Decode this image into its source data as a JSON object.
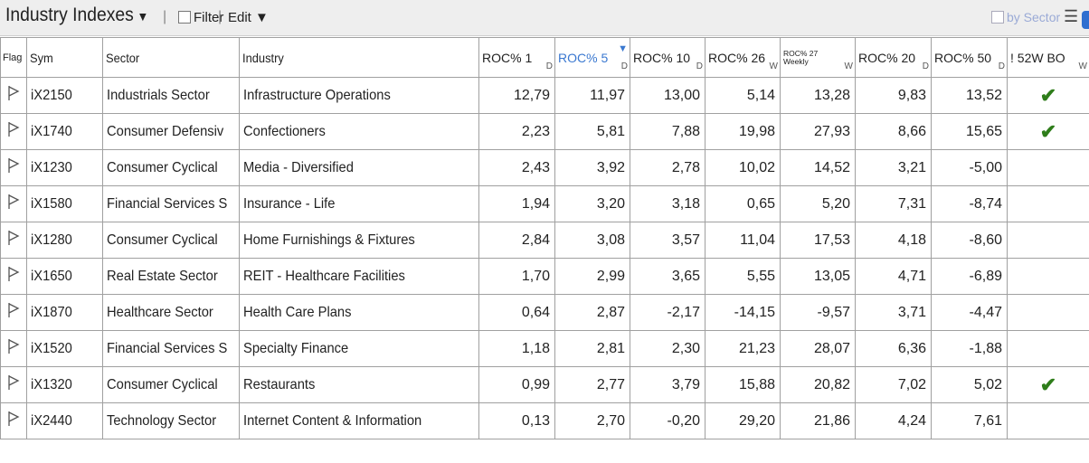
{
  "toolbar": {
    "title": "Industry Indexes",
    "title_caret": "▼",
    "sep": "|",
    "filter_label": "Filter",
    "edit_label": "Edit ▼",
    "by_sector_label": "by Sector",
    "menu_icon": "☰"
  },
  "columns": {
    "flag": "Flag",
    "sym": "Sym",
    "sector": "Sector",
    "industry": "Industry",
    "roc1": "ROC% 1",
    "roc1_sub": "D",
    "roc5": "ROC% 5",
    "roc5_sub": "D",
    "roc10": "ROC% 10",
    "roc10_sub": "D",
    "roc26": "ROC% 26",
    "roc26_sub": "W",
    "roc27_line1": "ROC% 27",
    "roc27_line2": "Weekly",
    "roc27_sub": "W",
    "roc20": "ROC% 20",
    "roc20_sub": "D",
    "roc50": "ROC% 50",
    "roc50_sub": "D",
    "bo": "! 52W BO",
    "bo_sub": "W"
  },
  "colors": {
    "check": "#2e7d1a",
    "sorted_header": "#3a78d0"
  },
  "rows": [
    {
      "sym": "iX2150",
      "sector": "Industrials Sector",
      "industry": "Infrastructure Operations",
      "roc1": "12,79",
      "roc5": "11,97",
      "roc10": "13,00",
      "roc26": "5,14",
      "roc27": "13,28",
      "roc20": "9,83",
      "roc50": "13,52",
      "bo": "✔"
    },
    {
      "sym": "iX1740",
      "sector": "Consumer Defensiv",
      "industry": "Confectioners",
      "roc1": "2,23",
      "roc5": "5,81",
      "roc10": "7,88",
      "roc26": "19,98",
      "roc27": "27,93",
      "roc20": "8,66",
      "roc50": "15,65",
      "bo": "✔"
    },
    {
      "sym": "iX1230",
      "sector": "Consumer Cyclical",
      "industry": "Media - Diversified",
      "roc1": "2,43",
      "roc5": "3,92",
      "roc10": "2,78",
      "roc26": "10,02",
      "roc27": "14,52",
      "roc20": "3,21",
      "roc50": "-5,00",
      "bo": ""
    },
    {
      "sym": "iX1580",
      "sector": "Financial Services S",
      "industry": "Insurance - Life",
      "roc1": "1,94",
      "roc5": "3,20",
      "roc10": "3,18",
      "roc26": "0,65",
      "roc27": "5,20",
      "roc20": "7,31",
      "roc50": "-8,74",
      "bo": ""
    },
    {
      "sym": "iX1280",
      "sector": "Consumer Cyclical",
      "industry": "Home Furnishings & Fixtures",
      "roc1": "2,84",
      "roc5": "3,08",
      "roc10": "3,57",
      "roc26": "11,04",
      "roc27": "17,53",
      "roc20": "4,18",
      "roc50": "-8,60",
      "bo": ""
    },
    {
      "sym": "iX1650",
      "sector": "Real Estate Sector",
      "industry": "REIT - Healthcare Facilities",
      "roc1": "1,70",
      "roc5": "2,99",
      "roc10": "3,65",
      "roc26": "5,55",
      "roc27": "13,05",
      "roc20": "4,71",
      "roc50": "-6,89",
      "bo": ""
    },
    {
      "sym": "iX1870",
      "sector": "Healthcare Sector",
      "industry": "Health Care Plans",
      "roc1": "0,64",
      "roc5": "2,87",
      "roc10": "-2,17",
      "roc26": "-14,15",
      "roc27": "-9,57",
      "roc20": "3,71",
      "roc50": "-4,47",
      "bo": ""
    },
    {
      "sym": "iX1520",
      "sector": "Financial Services S",
      "industry": "Specialty Finance",
      "roc1": "1,18",
      "roc5": "2,81",
      "roc10": "2,30",
      "roc26": "21,23",
      "roc27": "28,07",
      "roc20": "6,36",
      "roc50": "-1,88",
      "bo": ""
    },
    {
      "sym": "iX1320",
      "sector": "Consumer Cyclical",
      "industry": "Restaurants",
      "roc1": "0,99",
      "roc5": "2,77",
      "roc10": "3,79",
      "roc26": "15,88",
      "roc27": "20,82",
      "roc20": "7,02",
      "roc50": "5,02",
      "bo": "✔"
    },
    {
      "sym": "iX2440",
      "sector": "Technology Sector",
      "industry": "Internet Content & Information",
      "roc1": "0,13",
      "roc5": "2,70",
      "roc10": "-0,20",
      "roc26": "29,20",
      "roc27": "21,86",
      "roc20": "4,24",
      "roc50": "7,61",
      "bo": ""
    }
  ]
}
